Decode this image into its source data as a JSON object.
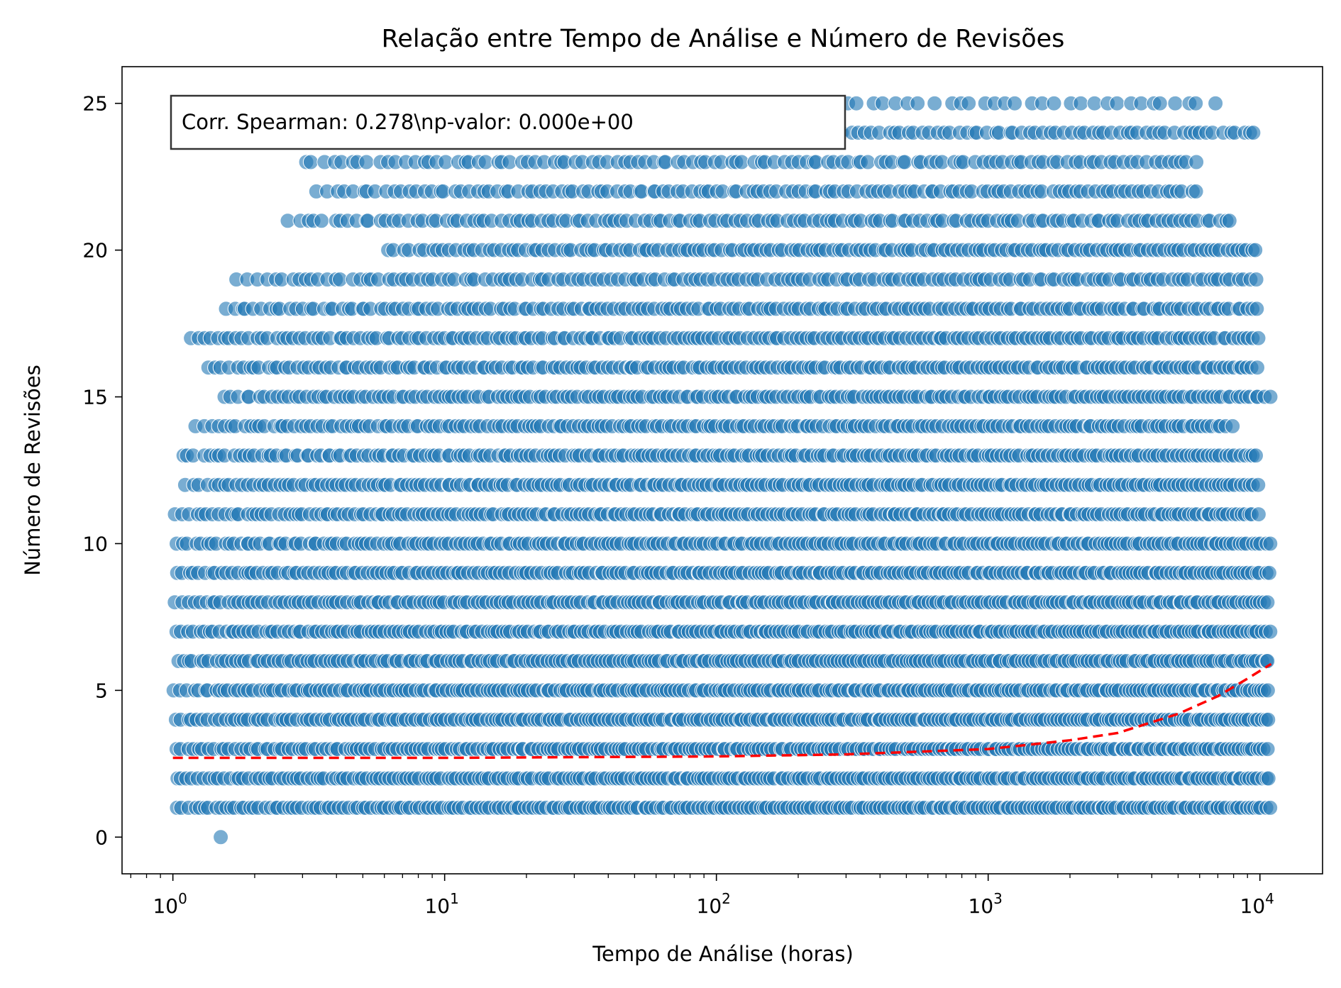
{
  "chart_data": {
    "type": "scatter",
    "title": "Relação entre Tempo de Análise e Número de Revisões",
    "xlabel": "Tempo de Análise (horas)",
    "ylabel": "Número de Revisões",
    "xscale": "log",
    "xlim": [
      0.65,
      17000
    ],
    "ylim": [
      -1.25,
      26.25
    ],
    "x_ticks": [
      {
        "base": "10",
        "exp": "0",
        "value": 1
      },
      {
        "base": "10",
        "exp": "1",
        "value": 10
      },
      {
        "base": "10",
        "exp": "2",
        "value": 100
      },
      {
        "base": "10",
        "exp": "3",
        "value": 1000
      },
      {
        "base": "10",
        "exp": "4",
        "value": 10000
      }
    ],
    "y_ticks": [
      "0",
      "5",
      "10",
      "15",
      "20",
      "25"
    ],
    "grid": false,
    "point_color": "#1f77b4",
    "trend_color": "#ff0000",
    "annotation": "Corr. Spearman: 0.278\\np-valor: 0.000e+00",
    "trend_line": {
      "x": [
        1,
        10,
        100,
        300,
        1000,
        2000,
        3000,
        5000,
        7000,
        9000,
        11000
      ],
      "y": [
        2.7,
        2.7,
        2.75,
        2.82,
        3.0,
        3.3,
        3.55,
        4.2,
        4.8,
        5.4,
        5.9
      ]
    },
    "series": [
      {
        "row_bands": [
          {
            "y": 0,
            "xmin": 1.5,
            "xmax": 1.6,
            "density": 0
          },
          {
            "y": 1,
            "xmin": 1.0,
            "xmax": 11000,
            "density": 1.0
          },
          {
            "y": 2,
            "xmin": 1.0,
            "xmax": 11000,
            "density": 1.0
          },
          {
            "y": 3,
            "xmin": 1.0,
            "xmax": 11000,
            "density": 1.0
          },
          {
            "y": 4,
            "xmin": 1.0,
            "xmax": 11000,
            "density": 1.0
          },
          {
            "y": 5,
            "xmin": 1.0,
            "xmax": 11000,
            "density": 1.0
          },
          {
            "y": 6,
            "xmin": 1.0,
            "xmax": 11000,
            "density": 1.0
          },
          {
            "y": 7,
            "xmin": 1.0,
            "xmax": 11000,
            "density": 1.0
          },
          {
            "y": 8,
            "xmin": 1.0,
            "xmax": 11000,
            "density": 0.95
          },
          {
            "y": 9,
            "xmin": 1.0,
            "xmax": 11000,
            "density": 0.95
          },
          {
            "y": 10,
            "xmin": 1.0,
            "xmax": 11000,
            "density": 0.92
          },
          {
            "y": 11,
            "xmin": 1.0,
            "xmax": 10000,
            "density": 0.9
          },
          {
            "y": 12,
            "xmin": 1.1,
            "xmax": 10000,
            "density": 0.88
          },
          {
            "y": 13,
            "xmin": 1.05,
            "xmax": 10000,
            "density": 0.85
          },
          {
            "y": 14,
            "xmin": 1.2,
            "xmax": 8000,
            "density": 0.8
          },
          {
            "y": 15,
            "xmin": 1.5,
            "xmax": 11000,
            "density": 0.8
          },
          {
            "y": 16,
            "xmin": 1.3,
            "xmax": 10000,
            "density": 0.78
          },
          {
            "y": 17,
            "xmin": 1.1,
            "xmax": 10000,
            "density": 0.75
          },
          {
            "y": 18,
            "xmin": 1.5,
            "xmax": 10000,
            "density": 0.7
          },
          {
            "y": 19,
            "xmin": 1.7,
            "xmax": 10000,
            "density": 0.6
          },
          {
            "y": 20,
            "xmin": 6,
            "xmax": 10000,
            "density": 0.6
          },
          {
            "y": 21,
            "xmin": 2.6,
            "xmax": 8000,
            "density": 0.55
          },
          {
            "y": 22,
            "xmin": 3.3,
            "xmax": 6000,
            "density": 0.5
          },
          {
            "y": 23,
            "xmin": 2.9,
            "xmax": 6000,
            "density": 0.45
          },
          {
            "y": 24,
            "xmin": 15,
            "xmax": 10000,
            "density": 0.4
          },
          {
            "y": 25,
            "xmin": 1.4,
            "xmax": 7000,
            "density": 0.3
          }
        ]
      }
    ]
  }
}
